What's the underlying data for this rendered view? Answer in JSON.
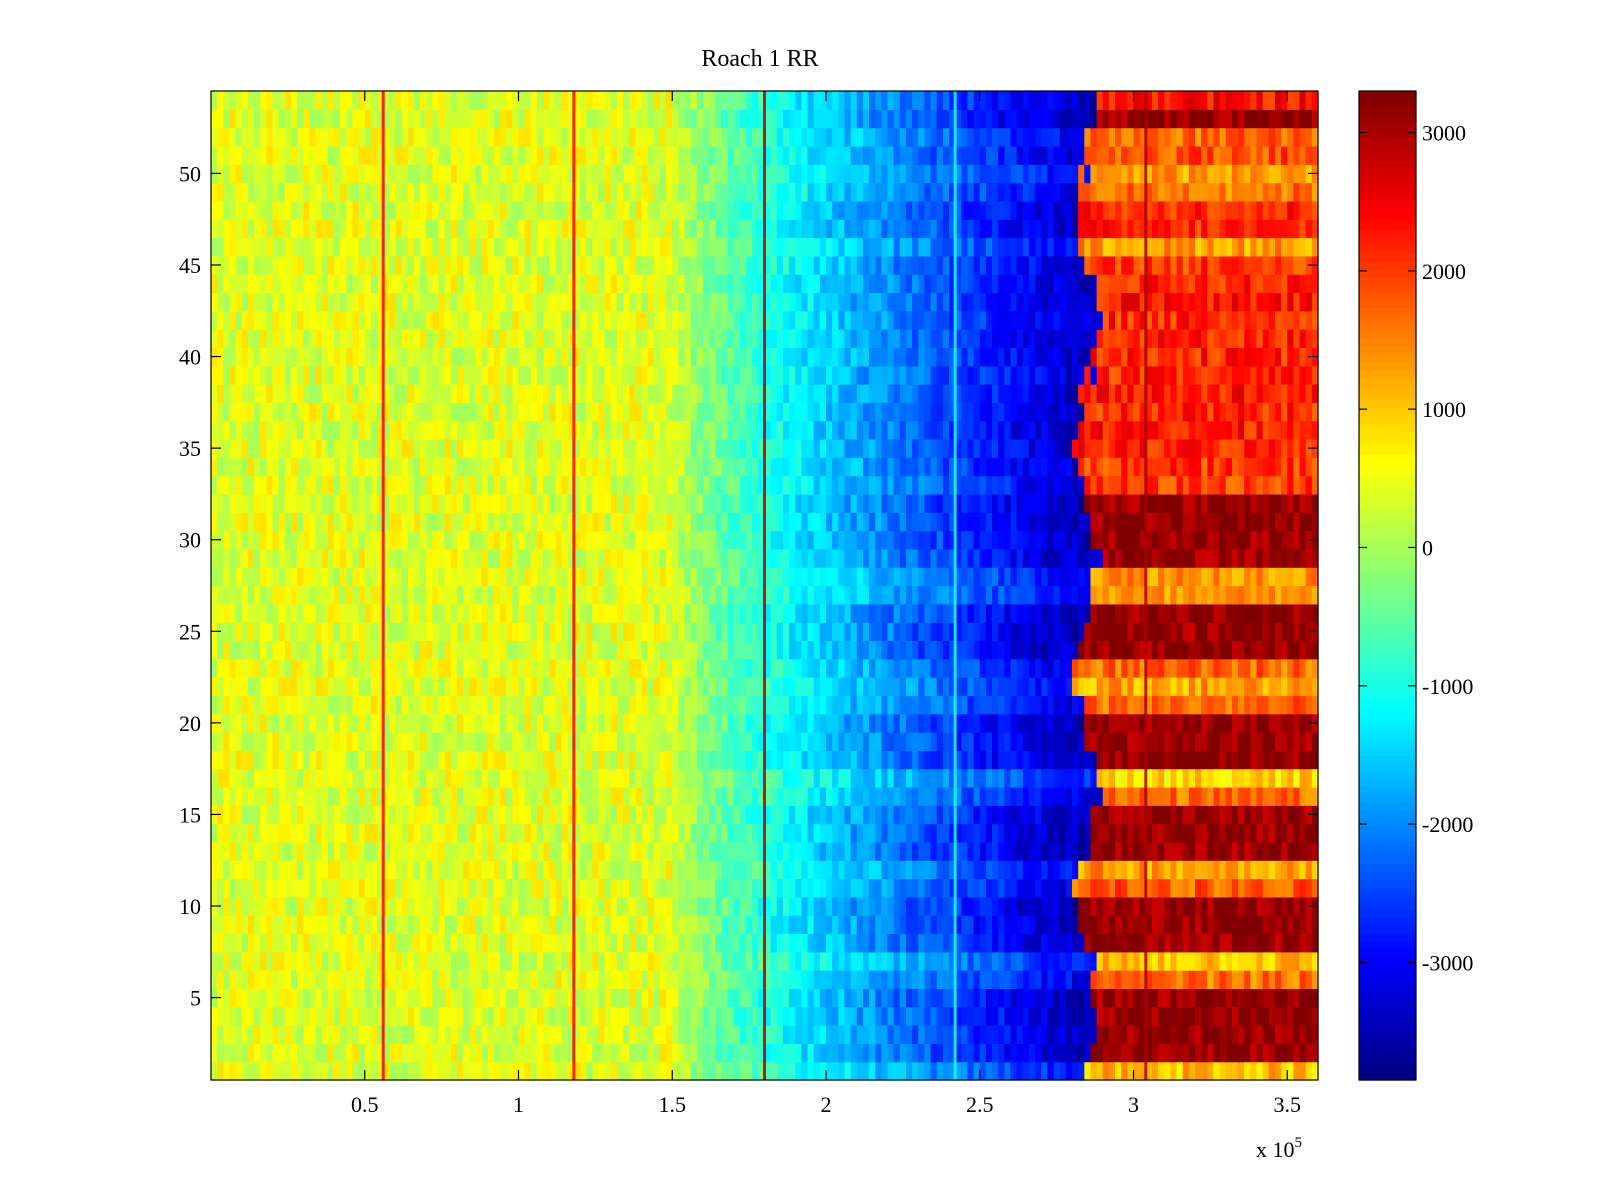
{
  "chart_data": {
    "type": "heatmap",
    "title": "Roach 1 RR",
    "xlabel": "",
    "ylabel": "",
    "x_exponent_label": "x 10",
    "x_exponent_power": "5",
    "xlim": [
      0,
      360000
    ],
    "ylim": [
      0.5,
      54.5
    ],
    "x_ticks": [
      0.5,
      1,
      1.5,
      2,
      2.5,
      3,
      3.5
    ],
    "x_tick_labels": [
      "0.5",
      "1",
      "1.5",
      "2",
      "2.5",
      "3",
      "3.5"
    ],
    "y_ticks": [
      5,
      10,
      15,
      20,
      25,
      30,
      35,
      40,
      45,
      50
    ],
    "y_tick_labels": [
      "5",
      "10",
      "15",
      "20",
      "25",
      "30",
      "35",
      "40",
      "45",
      "50"
    ],
    "rows": 54,
    "colormap": "jet",
    "clim": [
      -3850,
      3300
    ],
    "colorbar_ticks": [
      3000,
      2000,
      1000,
      0,
      -1000,
      -2000,
      -3000
    ],
    "colorbar_tick_labels": [
      "3000",
      "2000",
      "1000",
      "0",
      "-1000",
      "-2000",
      "-3000"
    ],
    "vertical_stripes_x": [
      56000,
      118000,
      180000,
      242000,
      304000
    ],
    "description_profile": {
      "plateau_value": 400,
      "decline_start_x": 150000,
      "trough_value": -3600,
      "jump_x": 285000,
      "high_band_value": 3200,
      "alternating_band_value": 900
    },
    "row_amplitude": [
      0.55,
      0.95,
      0.92,
      0.96,
      0.97,
      0.7,
      0.55,
      0.93,
      0.96,
      0.97,
      0.75,
      0.62,
      0.97,
      0.96,
      0.95,
      0.7,
      0.5,
      0.98,
      0.95,
      0.97,
      0.72,
      0.6,
      0.72,
      0.95,
      0.97,
      0.96,
      0.6,
      0.65,
      0.95,
      0.97,
      0.96,
      0.98,
      0.8,
      0.82,
      0.86,
      0.88,
      0.85,
      0.88,
      0.84,
      0.86,
      0.87,
      0.85,
      0.88,
      0.86,
      0.8,
      0.62,
      0.85,
      0.86,
      0.7,
      0.62,
      0.78,
      0.72,
      0.98,
      0.9
    ]
  }
}
